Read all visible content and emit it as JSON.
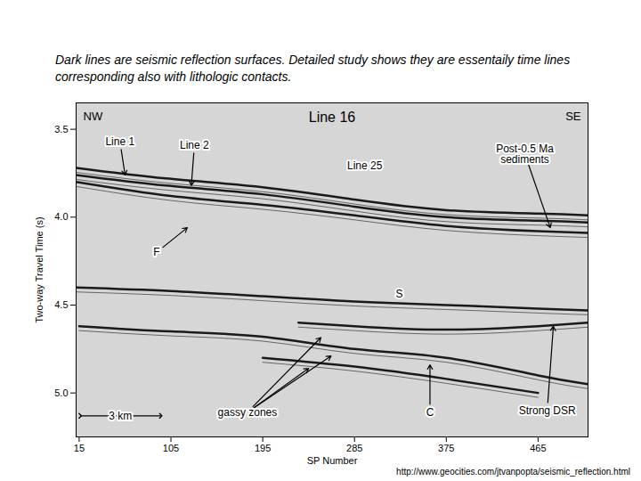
{
  "header": "Dark lines are seismic reflection surfaces.  Detailed study shows they are essentaily time lines corresponding also with lithologic contacts.",
  "source": "http://www.geocities.com/jtvanpopta/seismic_reflection.html",
  "chart_data": {
    "type": "line",
    "title": "Line 16",
    "corner_labels": {
      "left": "NW",
      "right": "SE"
    },
    "x_label": "SP Number",
    "y_label": "Two-way Travel Time (s)",
    "xlim": [
      12,
      514
    ],
    "xticks": [
      15,
      105,
      195,
      285,
      375,
      465
    ],
    "ylim": [
      3.35,
      5.25
    ],
    "yticks": [
      3.5,
      {
        "value": 4,
        "label": "4.0"
      },
      4.5,
      {
        "value": 5,
        "label": "5.0"
      }
    ],
    "grid": false,
    "series": [
      {
        "color": "#1a1a1a",
        "x": [
          12,
          100,
          195,
          285,
          375,
          465,
          514
        ],
        "values": [
          3.72,
          3.78,
          3.83,
          3.9,
          3.96,
          3.98,
          3.99
        ]
      },
      {
        "color": "#1a1a1a",
        "x": [
          12,
          100,
          195,
          285,
          375,
          465,
          514
        ],
        "values": [
          3.76,
          3.82,
          3.87,
          3.94,
          4.0,
          4.02,
          4.03
        ]
      },
      {
        "color": "#1a1a1a",
        "x": [
          12,
          105,
          195,
          285,
          375,
          465,
          514
        ],
        "values": [
          3.8,
          3.88,
          3.93,
          3.99,
          4.05,
          4.08,
          4.09
        ]
      },
      {
        "color": "#1a1a1a",
        "x": [
          12,
          105,
          195,
          285,
          375,
          465,
          514
        ],
        "values": [
          4.4,
          4.42,
          4.45,
          4.48,
          4.5,
          4.52,
          4.53
        ]
      },
      {
        "color": "#1a1a1a",
        "x": [
          230,
          285,
          375,
          465,
          514
        ],
        "values": [
          4.6,
          4.62,
          4.64,
          4.62,
          4.6
        ]
      },
      {
        "color": "#1a1a1a",
        "x": [
          15,
          105,
          195,
          285,
          375,
          465,
          514
        ],
        "values": [
          4.62,
          4.65,
          4.68,
          4.75,
          4.8,
          4.9,
          4.95
        ]
      },
      {
        "color": "#1a1a1a",
        "x": [
          195,
          285,
          375,
          465
        ],
        "values": [
          4.8,
          4.85,
          4.92,
          5.0
        ]
      }
    ],
    "annotations": [
      {
        "text": "Line 1",
        "x": 55,
        "y": 3.57,
        "arrows": [
          [
            60,
            3.76
          ]
        ]
      },
      {
        "text": "Line 2",
        "x": 128,
        "y": 3.59,
        "arrows": [
          [
            125,
            3.82
          ]
        ]
      },
      {
        "text": "Line 25",
        "x": 295,
        "y": 3.71,
        "arrows": []
      },
      {
        "text": "Post-0.5 Ma\nsediments",
        "x": 452,
        "y": 3.64,
        "arrows": [
          [
            477,
            4.06
          ]
        ]
      },
      {
        "text": "F",
        "x": 91,
        "y": 4.2,
        "arrows": [
          [
            121,
            4.06
          ]
        ]
      },
      {
        "text": "S",
        "x": 329,
        "y": 4.44,
        "arrows": []
      },
      {
        "text": "gassy zones",
        "x": 180,
        "y": 5.11,
        "arrows": [
          [
            252,
            4.685
          ],
          [
            262,
            4.79
          ],
          [
            240,
            4.86
          ]
        ]
      },
      {
        "text": "C",
        "x": 359,
        "y": 5.11,
        "arrows": [
          [
            359,
            4.84
          ]
        ]
      },
      {
        "text": "Strong DSR",
        "x": 474,
        "y": 5.1,
        "arrows": [
          [
            480,
            4.62
          ]
        ]
      }
    ],
    "scale_bar": {
      "label": "3 km",
      "x": [
        16,
        95
      ],
      "y": 5.13
    }
  }
}
